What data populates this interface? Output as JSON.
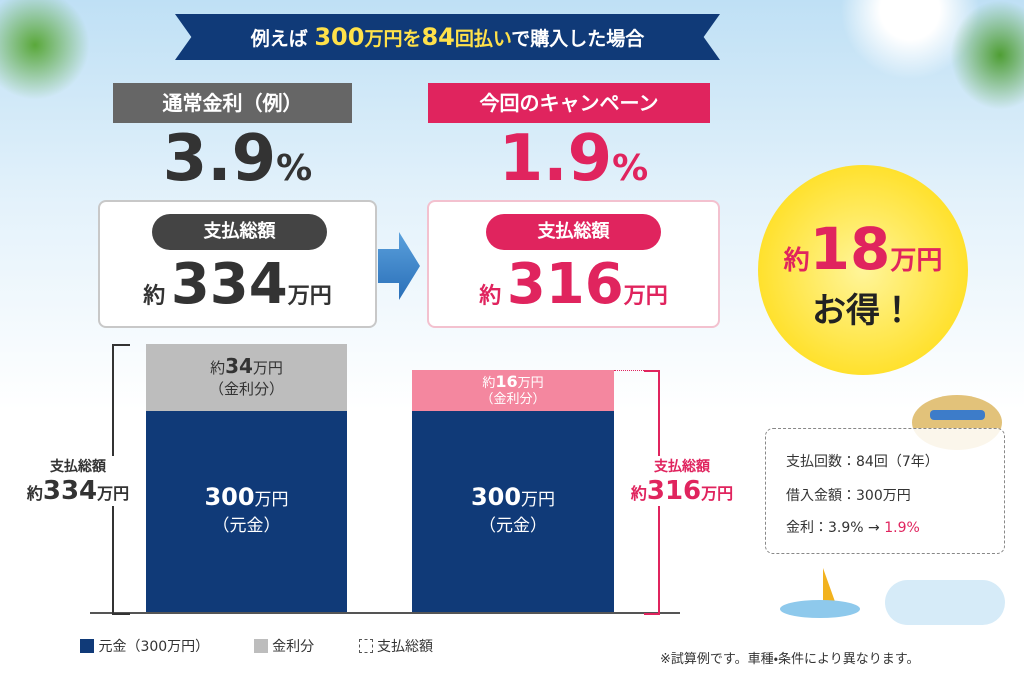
{
  "banner": {
    "parts": [
      "例えば",
      "300",
      "万円を",
      "84",
      "回払い",
      "で購入した場合"
    ]
  },
  "normal": {
    "label": "通常金利（例）",
    "rate": "3.9",
    "rate_unit": "%",
    "total_label": "支払総額",
    "total_prefix": "約",
    "total": "334",
    "total_unit": "万円"
  },
  "campaign": {
    "label": "今回のキャンペーン",
    "rate": "1.9",
    "rate_unit": "%",
    "total_label": "支払総額",
    "total_prefix": "約",
    "total": "316",
    "total_unit": "万円"
  },
  "savings": {
    "prefix": "約",
    "value": "18",
    "unit": "万円",
    "suffix": "お得！"
  },
  "chart": {
    "left": {
      "interest": {
        "prefix": "約",
        "value": "34",
        "unit": "万円",
        "note": "（金利分）"
      },
      "principal": {
        "value": "300",
        "unit": "万円",
        "note": "（元金）"
      },
      "total": {
        "label": "支払総額",
        "prefix": "約",
        "value": "334",
        "unit": "万円"
      }
    },
    "right": {
      "interest": {
        "prefix": "約",
        "value": "16",
        "unit": "万円",
        "note": "（金利分）"
      },
      "principal": {
        "value": "300",
        "unit": "万円",
        "note": "（元金）"
      },
      "total": {
        "label": "支払総額",
        "prefix": "約",
        "value": "316",
        "unit": "万円"
      }
    },
    "legend": [
      "元金（300万円）",
      "金利分",
      "支払総額"
    ]
  },
  "info": {
    "rows": [
      "支払回数：84回（7年）",
      "借入金額：300万円"
    ],
    "rate": {
      "label": "金利：",
      "from": "3.9%",
      "arrow": "→",
      "to": "1.9%"
    }
  },
  "note": "※試算例です。車種・条件により異なります。"
}
